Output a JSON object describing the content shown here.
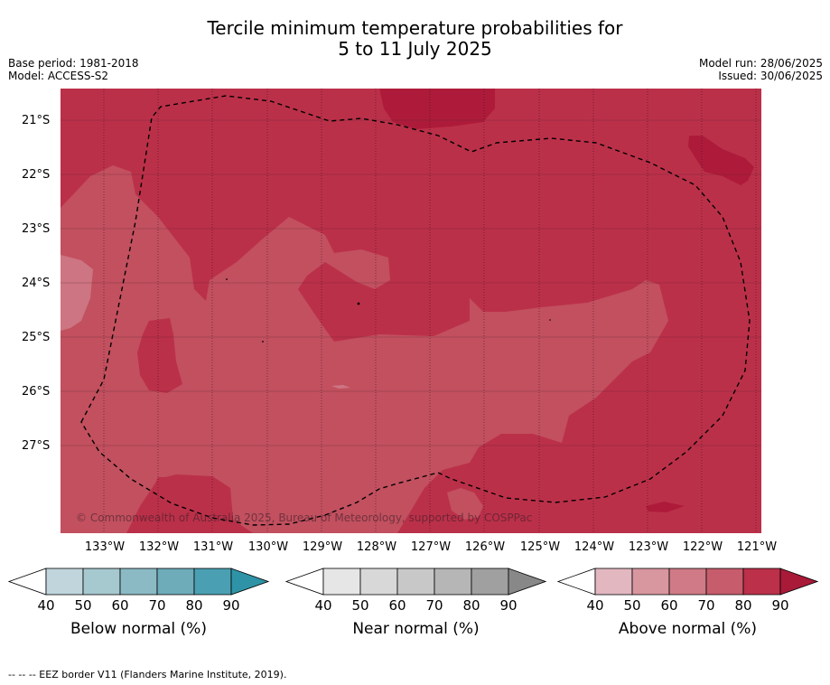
{
  "title_line1": "Tercile minimum temperature probabilities for",
  "title_line2": "5 to 11 July 2025",
  "meta": {
    "base_period": "Base period: 1981-2018",
    "model": "Model: ACCESS-S2",
    "model_run": "Model run: 28/06/2025",
    "issued": "Issued: 30/06/2025"
  },
  "copyright": "© Commonwealth of Australia 2025, Bureau of Meteorology, supported by COSPPac",
  "lat_labels": [
    "21°S",
    "22°S",
    "23°S",
    "24°S",
    "25°S",
    "26°S",
    "27°S"
  ],
  "lon_labels": [
    "133°W",
    "132°W",
    "131°W",
    "130°W",
    "129°W",
    "128°W",
    "127°W",
    "126°W",
    "125°W",
    "124°W",
    "123°W",
    "122°W",
    "121°W"
  ],
  "colorbars": [
    {
      "label": "Below normal (%)",
      "ticks": [
        "40",
        "50",
        "60",
        "70",
        "80",
        "90"
      ],
      "colors": [
        "#c0d6dc",
        "#a6c8cf",
        "#8bbac4",
        "#6eacba",
        "#4aa0b2",
        "#2e93a6"
      ]
    },
    {
      "label": "Near normal (%)",
      "ticks": [
        "40",
        "50",
        "60",
        "70",
        "80",
        "90"
      ],
      "colors": [
        "#e6e6e6",
        "#d8d8d8",
        "#c8c8c8",
        "#b6b6b6",
        "#a0a0a0",
        "#888888"
      ]
    },
    {
      "label": "Above normal (%)",
      "ticks": [
        "40",
        "50",
        "60",
        "70",
        "80",
        "90"
      ],
      "colors": [
        "#e2b7c0",
        "#d8969f",
        "#cf7a86",
        "#c75c6c",
        "#bc3049",
        "#a91a39"
      ]
    }
  ],
  "legend_colors": {
    "cat70": "#c2505f",
    "cat80": "#bb3049",
    "cat90": "#ae1b3a",
    "cat60": "#cd7582"
  },
  "footnote": "-- -- -- EEZ border V11 (Flanders Marine Institute, 2019)."
}
